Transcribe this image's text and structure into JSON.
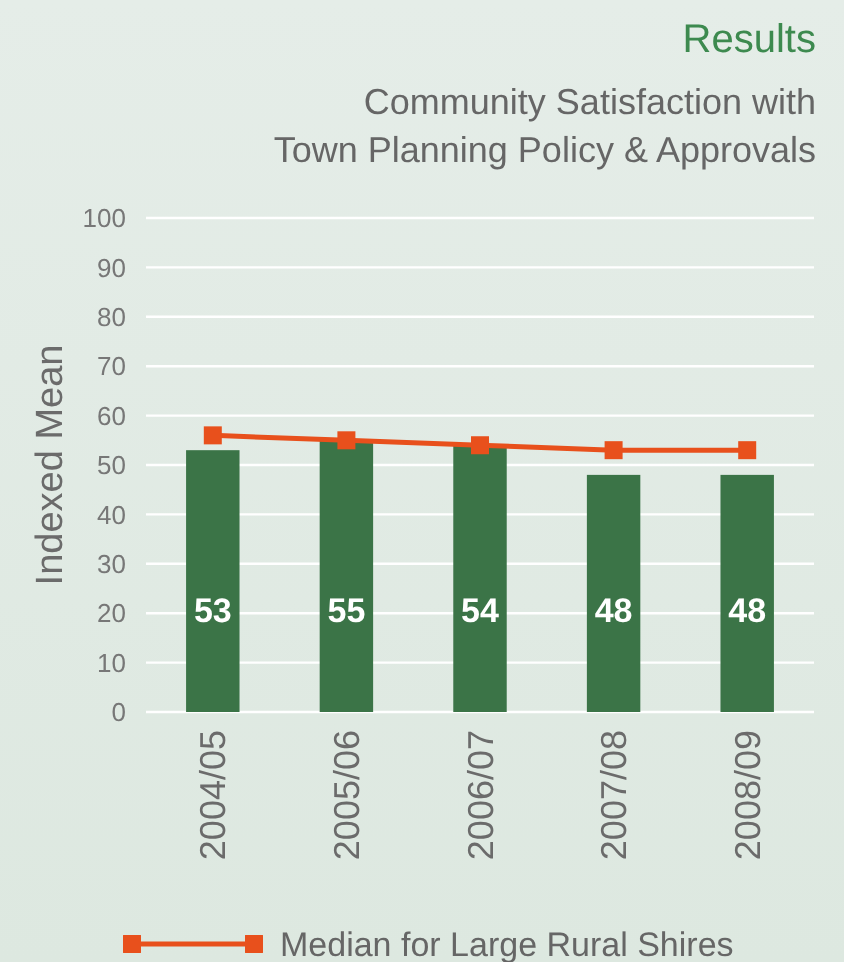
{
  "chart_data": {
    "type": "bar",
    "title": "Results",
    "subtitle": "Community Satisfaction with Town Planning Policy & Approvals",
    "ylabel": "Indexed Mean",
    "categories": [
      "2004/05",
      "2005/06",
      "2006/07",
      "2007/08",
      "2008/09"
    ],
    "series": [
      {
        "color": "#3b7447",
        "values": [
          53,
          55,
          54,
          48,
          48
        ],
        "value_labels": [
          "53",
          "55",
          "54",
          "48",
          "48"
        ]
      },
      {
        "type": "line",
        "name": "Median for Large Rural Shires",
        "color": "#e8501c",
        "values": [
          56,
          55,
          54,
          53,
          53
        ]
      }
    ],
    "ylim": [
      0,
      100
    ],
    "yticks": [
      0,
      10,
      20,
      30,
      40,
      50,
      60,
      70,
      80,
      90,
      100
    ],
    "grid": "y",
    "legend": "bottom",
    "marker": "square"
  }
}
